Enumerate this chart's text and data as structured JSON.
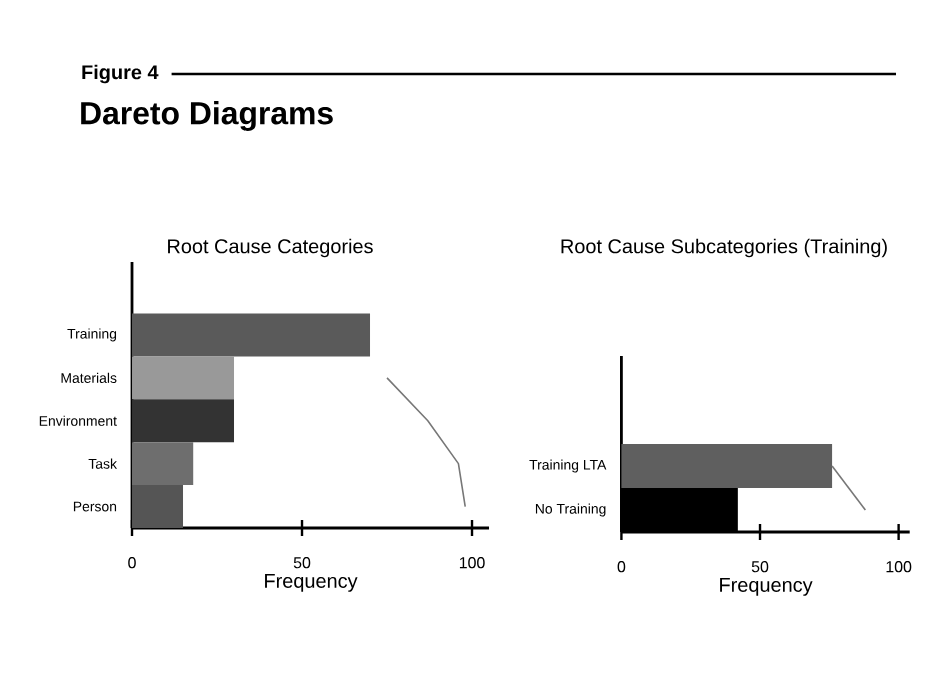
{
  "chart_data": [
    {
      "type": "bar",
      "orientation": "horizontal",
      "title": "Root Cause Categories",
      "annotations": [
        "Figure 4",
        "Dareto Diagrams"
      ],
      "categories": [
        "Training",
        "Materials",
        "Environment",
        "Task",
        "Person"
      ],
      "xlabel": "Frequency",
      "xlim": [
        0,
        105
      ],
      "xticks": [
        0,
        50,
        100
      ],
      "series": [
        {
          "values": [
            70,
            30,
            30,
            18,
            15
          ],
          "colors": [
            "#5a5a5a",
            "#999999",
            "#333333",
            "#6e6e6e",
            "#555555"
          ]
        },
        {
          "type": "line",
          "color": "#777777",
          "values": [
            null,
            75,
            87,
            96,
            98
          ]
        }
      ]
    },
    {
      "type": "bar",
      "orientation": "horizontal",
      "title": "Root Cause Subcategories (Training)",
      "categories": [
        "Training LTA",
        "No Training"
      ],
      "xlabel": "Frequency",
      "xlim": [
        0,
        104
      ],
      "xticks": [
        0,
        50,
        100
      ],
      "series": [
        {
          "values": [
            76,
            42
          ],
          "colors": [
            "#5f5f5f",
            "#000000"
          ]
        },
        {
          "type": "line",
          "color": "#777777",
          "values": [
            76,
            88
          ]
        }
      ]
    }
  ]
}
